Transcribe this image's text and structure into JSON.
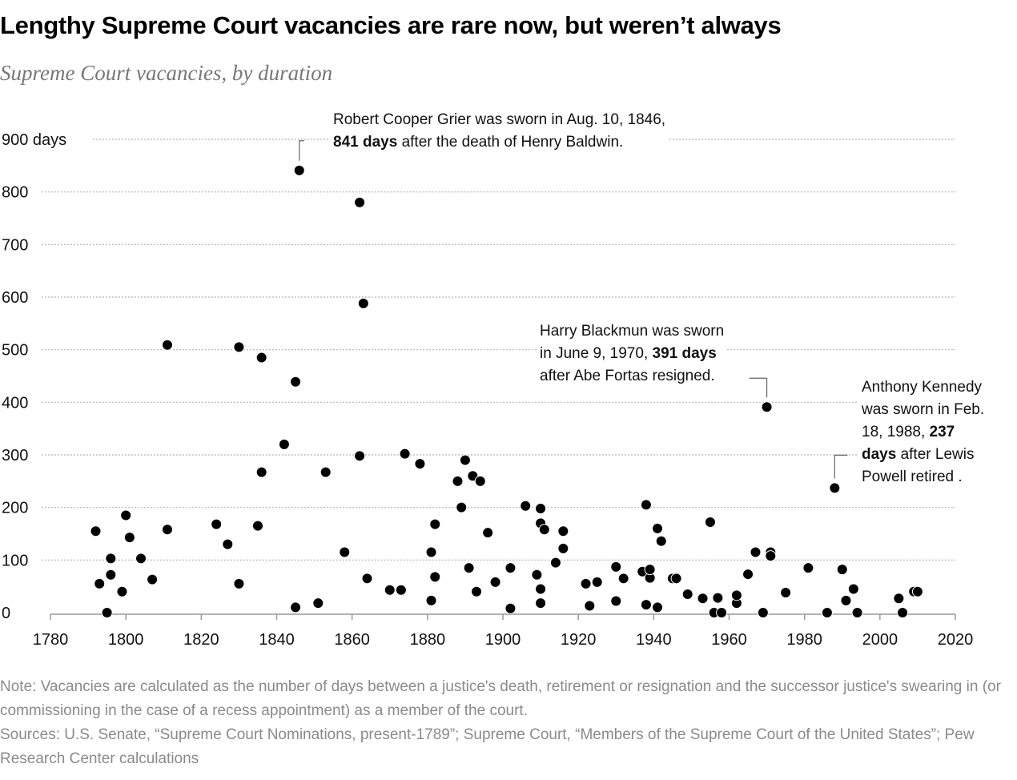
{
  "title": "Lengthy Supreme Court vacancies are rare now, but weren’t always",
  "subtitle": "Supreme Court vacancies, by duration",
  "annotations": {
    "grier": {
      "line1": "Robert Cooper Grier was sworn in Aug. 10, 1846,",
      "bold": "841 days",
      "line2_rest": " after the death of Henry Baldwin."
    },
    "blackmun": {
      "line1": "Harry Blackmun was sworn",
      "line2_pre": "in June 9, 1970, ",
      "bold": "391 days",
      "line3": "after Abe Fortas resigned."
    },
    "kennedy": {
      "line1": "Anthony Kennedy",
      "line2": "was sworn in Feb.",
      "line3_pre": "18, 1988, ",
      "bold1": "237",
      "bold2": "days",
      "line4_rest": " after Lewis",
      "line5": "Powell retired ."
    }
  },
  "note": "Note: Vacancies are calculated as the number of days between a justice's death, retirement or resignation and the successor justice's swearing in (or commissioning in the case of a recess appointment) as a member of the court.",
  "sources": "Sources: U.S. Senate, “Supreme Court Nominations, present-1789”; Supreme Court, “Members of the Supreme Court of the United States”; Pew Research Center calculations",
  "chart_data": {
    "type": "scatter",
    "title": "Lengthy Supreme Court vacancies are rare now, but weren’t always",
    "subtitle": "Supreme Court vacancies, by duration",
    "xlabel": "",
    "ylabel": "",
    "xlim": [
      1780,
      2020
    ],
    "ylim": [
      0,
      900
    ],
    "x_ticks": [
      1780,
      1800,
      1820,
      1840,
      1860,
      1880,
      1900,
      1920,
      1940,
      1960,
      1980,
      2000,
      2020
    ],
    "y_ticks": [
      0,
      100,
      200,
      300,
      400,
      500,
      600,
      700,
      800,
      900
    ],
    "y_tick_labels": [
      "0",
      "100",
      "200",
      "300",
      "400",
      "500",
      "600",
      "700",
      "800",
      "900 days"
    ],
    "grid": "horizontal dotted",
    "marker_color": "#000000",
    "points": [
      {
        "x": 1792,
        "y": 155
      },
      {
        "x": 1793,
        "y": 55
      },
      {
        "x": 1795,
        "y": 0
      },
      {
        "x": 1796,
        "y": 103
      },
      {
        "x": 1796,
        "y": 72
      },
      {
        "x": 1799,
        "y": 40
      },
      {
        "x": 1800,
        "y": 185
      },
      {
        "x": 1801,
        "y": 143
      },
      {
        "x": 1804,
        "y": 103
      },
      {
        "x": 1807,
        "y": 63
      },
      {
        "x": 1811,
        "y": 158
      },
      {
        "x": 1811,
        "y": 509
      },
      {
        "x": 1824,
        "y": 168
      },
      {
        "x": 1827,
        "y": 130
      },
      {
        "x": 1830,
        "y": 505
      },
      {
        "x": 1830,
        "y": 55
      },
      {
        "x": 1835,
        "y": 165
      },
      {
        "x": 1836,
        "y": 485
      },
      {
        "x": 1836,
        "y": 267
      },
      {
        "x": 1842,
        "y": 320
      },
      {
        "x": 1845,
        "y": 439
      },
      {
        "x": 1845,
        "y": 10
      },
      {
        "x": 1846,
        "y": 841
      },
      {
        "x": 1851,
        "y": 18
      },
      {
        "x": 1853,
        "y": 267
      },
      {
        "x": 1858,
        "y": 115
      },
      {
        "x": 1862,
        "y": 298
      },
      {
        "x": 1862,
        "y": 780
      },
      {
        "x": 1863,
        "y": 588
      },
      {
        "x": 1864,
        "y": 65
      },
      {
        "x": 1870,
        "y": 43
      },
      {
        "x": 1873,
        "y": 43
      },
      {
        "x": 1874,
        "y": 302
      },
      {
        "x": 1878,
        "y": 283
      },
      {
        "x": 1881,
        "y": 23
      },
      {
        "x": 1881,
        "y": 115
      },
      {
        "x": 1882,
        "y": 168
      },
      {
        "x": 1882,
        "y": 68
      },
      {
        "x": 1888,
        "y": 250
      },
      {
        "x": 1889,
        "y": 200
      },
      {
        "x": 1890,
        "y": 290
      },
      {
        "x": 1891,
        "y": 85
      },
      {
        "x": 1892,
        "y": 260
      },
      {
        "x": 1893,
        "y": 40
      },
      {
        "x": 1894,
        "y": 250
      },
      {
        "x": 1896,
        "y": 152
      },
      {
        "x": 1898,
        "y": 58
      },
      {
        "x": 1902,
        "y": 85
      },
      {
        "x": 1902,
        "y": 8
      },
      {
        "x": 1906,
        "y": 203
      },
      {
        "x": 1909,
        "y": 72
      },
      {
        "x": 1910,
        "y": 198
      },
      {
        "x": 1910,
        "y": 170
      },
      {
        "x": 1910,
        "y": 45
      },
      {
        "x": 1910,
        "y": 18
      },
      {
        "x": 1911,
        "y": 158
      },
      {
        "x": 1914,
        "y": 95
      },
      {
        "x": 1916,
        "y": 155
      },
      {
        "x": 1916,
        "y": 122
      },
      {
        "x": 1922,
        "y": 55
      },
      {
        "x": 1923,
        "y": 13
      },
      {
        "x": 1925,
        "y": 58
      },
      {
        "x": 1930,
        "y": 87
      },
      {
        "x": 1930,
        "y": 22
      },
      {
        "x": 1932,
        "y": 65
      },
      {
        "x": 1937,
        "y": 78
      },
      {
        "x": 1938,
        "y": 205
      },
      {
        "x": 1938,
        "y": 15
      },
      {
        "x": 1939,
        "y": 66
      },
      {
        "x": 1939,
        "y": 82
      },
      {
        "x": 1941,
        "y": 160
      },
      {
        "x": 1941,
        "y": 10
      },
      {
        "x": 1942,
        "y": 136
      },
      {
        "x": 1945,
        "y": 65
      },
      {
        "x": 1946,
        "y": 65
      },
      {
        "x": 1949,
        "y": 35
      },
      {
        "x": 1953,
        "y": 27
      },
      {
        "x": 1955,
        "y": 172
      },
      {
        "x": 1956,
        "y": 0
      },
      {
        "x": 1957,
        "y": 28
      },
      {
        "x": 1958,
        "y": 0
      },
      {
        "x": 1962,
        "y": 18
      },
      {
        "x": 1962,
        "y": 33
      },
      {
        "x": 1965,
        "y": 73
      },
      {
        "x": 1967,
        "y": 115
      },
      {
        "x": 1969,
        "y": 0
      },
      {
        "x": 1970,
        "y": 391
      },
      {
        "x": 1971,
        "y": 115
      },
      {
        "x": 1971,
        "y": 108
      },
      {
        "x": 1975,
        "y": 38
      },
      {
        "x": 1981,
        "y": 85
      },
      {
        "x": 1986,
        "y": 0
      },
      {
        "x": 1988,
        "y": 237
      },
      {
        "x": 1990,
        "y": 82
      },
      {
        "x": 1991,
        "y": 23
      },
      {
        "x": 1993,
        "y": 45
      },
      {
        "x": 1994,
        "y": 0
      },
      {
        "x": 2005,
        "y": 27
      },
      {
        "x": 2006,
        "y": 0
      },
      {
        "x": 2009,
        "y": 40
      },
      {
        "x": 2010,
        "y": 40
      }
    ]
  }
}
